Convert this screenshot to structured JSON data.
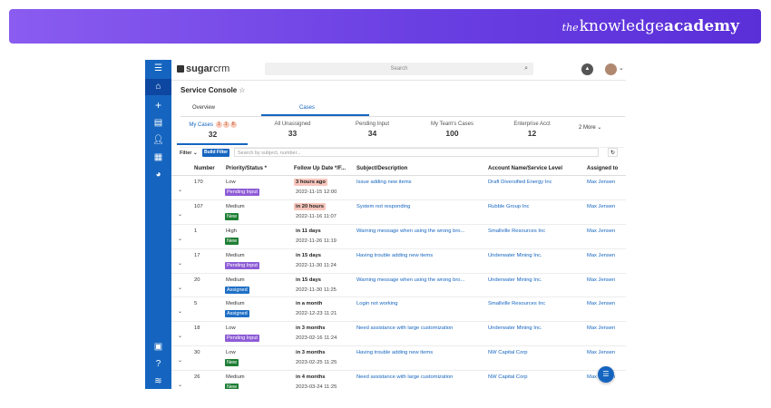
{
  "brand": {
    "the": "the",
    "knowledge": "knowledge",
    "academy": "academy"
  },
  "app": {
    "logo_sugar": "sugar",
    "logo_crm": "crm",
    "search_placeholder": "Search",
    "title": "Service Console",
    "tabs": [
      "Overview",
      "Cases"
    ],
    "active_tab": "Cases",
    "accent_color": "#1565c0"
  },
  "stats": [
    {
      "label": "My Cases",
      "count": "32",
      "dots": [
        "1",
        "1",
        "6"
      ]
    },
    {
      "label": "All Unassigned",
      "count": "33"
    },
    {
      "label": "Pending Input",
      "count": "34"
    },
    {
      "label": "My Team's Cases",
      "count": "100"
    },
    {
      "label": "Enterprise Acct",
      "count": "12"
    }
  ],
  "more_label": "2 More",
  "filter": {
    "label": "Filter",
    "build_button": "Build Filter",
    "placeholder": "Search by subject, number..."
  },
  "columns": [
    "Number",
    "Priority/Status *",
    "Follow Up Date */F...",
    "Subject/Description",
    "Account Name/Service Level",
    "Assigned to"
  ],
  "rows": [
    {
      "number": "170",
      "priority": "Low",
      "status": "Pending Input",
      "follow": "3 hours ago",
      "follow_date": "2022-11-15 12:00",
      "subject": "Issue adding new items",
      "account": "Draft Diversified Energy Inc",
      "assigned": "Max Jensen"
    },
    {
      "number": "107",
      "priority": "Medium",
      "status": "New",
      "follow": "in 20 hours",
      "follow_date": "2022-11-16 11:07",
      "subject": "System not responding",
      "account": "Rubble Group Inc",
      "assigned": "Max Jensen"
    },
    {
      "number": "1",
      "priority": "High",
      "status": "New",
      "follow": "in 11 days",
      "follow_date": "2022-11-26 11:19",
      "subject": "Warning message when using the wrong bro...",
      "account": "Smallville Resources Inc",
      "assigned": "Max Jensen"
    },
    {
      "number": "17",
      "priority": "Medium",
      "status": "Pending Input",
      "follow": "in 15 days",
      "follow_date": "2022-11-30 11:24",
      "subject": "Having trouble adding new items",
      "account": "Underwater Mining Inc.",
      "assigned": "Max Jensen"
    },
    {
      "number": "20",
      "priority": "Medium",
      "status": "Assigned",
      "follow": "in 15 days",
      "follow_date": "2022-11-30 11:25",
      "subject": "Warning message when using the wrong bro...",
      "account": "Underwater Mining Inc.",
      "assigned": "Max Jensen"
    },
    {
      "number": "5",
      "priority": "Medium",
      "status": "Assigned",
      "follow": "in a month",
      "follow_date": "2022-12-23 11:21",
      "subject": "Login not working",
      "account": "Smallville Resources Inc",
      "assigned": "Max Jensen"
    },
    {
      "number": "18",
      "priority": "Low",
      "status": "Pending Input",
      "follow": "in 3 months",
      "follow_date": "2023-02-16 11:24",
      "subject": "Need assistance with large customization",
      "account": "Underwater Mining Inc.",
      "assigned": "Max Jensen"
    },
    {
      "number": "30",
      "priority": "Low",
      "status": "New",
      "follow": "in 3 months",
      "follow_date": "2023-02-25 11:25",
      "subject": "Having trouble adding new items",
      "account": "NW Capital Corp",
      "assigned": "Max Jensen"
    },
    {
      "number": "26",
      "priority": "Medium",
      "status": "New",
      "follow": "in 4 months",
      "follow_date": "2023-03-24 11:25",
      "subject": "Need assistance with large customization",
      "account": "NW Capital Corp",
      "assigned": "Max Jensen"
    }
  ],
  "status_colors": {
    "Pending Input": "#8e5bd6",
    "New": "#1e7e34",
    "Assigned": "#1f6fc5"
  },
  "follow_highlight": {
    "3 hours ago": "#f8c6bd",
    "in 20 hours": "#f8c6bd"
  }
}
